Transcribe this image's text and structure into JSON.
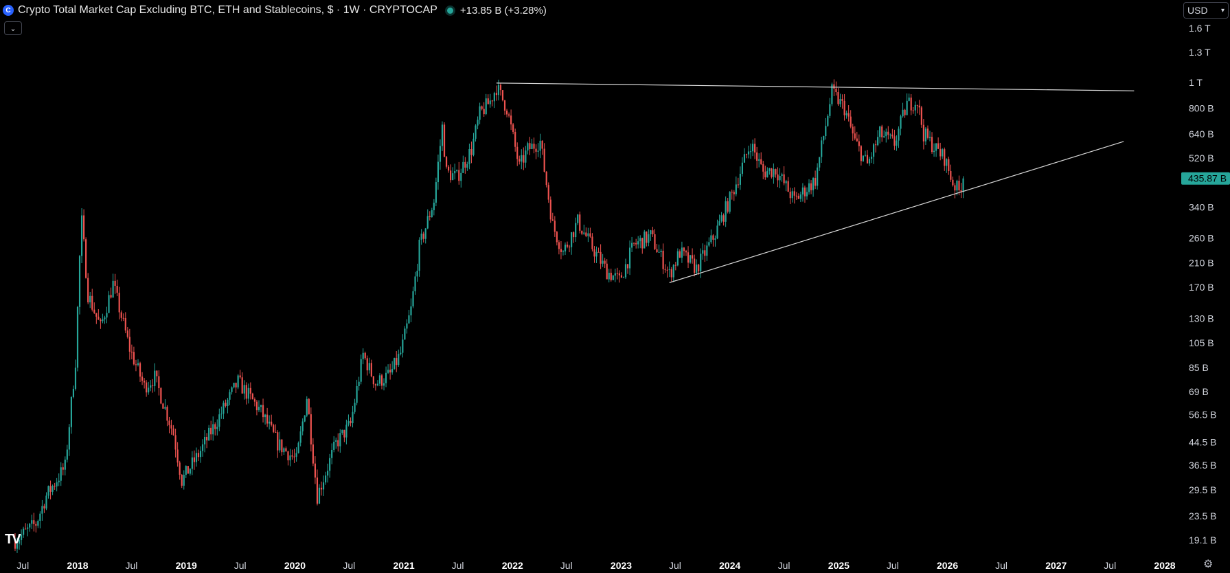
{
  "header": {
    "title": "Crypto Total Market Cap Excluding BTC, ETH and Stablecoins, $ · 1W · CRYPTOCAP",
    "change": "+13.85 B (+3.28%)",
    "logo_icon": "cryptocap-logo-icon",
    "status_color": "#26a69a"
  },
  "toolbar": {
    "currency_label": "USD",
    "collapse_icon": "chevron-down-icon",
    "settings_icon": "gear-icon",
    "tv_logo": "TV"
  },
  "colors": {
    "up": "#26a69a",
    "down": "#ef5350",
    "trendline": "#d9d9d9",
    "last_price_bg": "#26a69a"
  },
  "chart_data": {
    "type": "candlestick",
    "title": "Crypto Total Market Cap Excluding BTC, ETH and Stablecoins",
    "interval": "1W",
    "scale": "log",
    "y_unit": "USD",
    "y_ticks": [
      "1.6 T",
      "1.3 T",
      "1 T",
      "800 B",
      "640 B",
      "520 B",
      "340 B",
      "260 B",
      "210 B",
      "170 B",
      "130 B",
      "105 B",
      "85 B",
      "69 B",
      "56.5 B",
      "44.5 B",
      "36.5 B",
      "29.5 B",
      "23.5 B",
      "19.1 B"
    ],
    "y_tick_values_billions": [
      1600,
      1300,
      1000,
      800,
      640,
      520,
      340,
      260,
      210,
      170,
      130,
      105,
      85,
      69,
      56.5,
      44.5,
      36.5,
      29.5,
      23.5,
      19.1
    ],
    "x_ticks": [
      {
        "label": "Jul",
        "date": "2017-07-01",
        "bold": false
      },
      {
        "label": "2018",
        "date": "2018-01-01",
        "bold": true
      },
      {
        "label": "Jul",
        "date": "2018-07-01",
        "bold": false
      },
      {
        "label": "2019",
        "date": "2019-01-01",
        "bold": true
      },
      {
        "label": "Jul",
        "date": "2019-07-01",
        "bold": false
      },
      {
        "label": "2020",
        "date": "2020-01-01",
        "bold": true
      },
      {
        "label": "Jul",
        "date": "2020-07-01",
        "bold": false
      },
      {
        "label": "2021",
        "date": "2021-01-01",
        "bold": true
      },
      {
        "label": "Jul",
        "date": "2021-07-01",
        "bold": false
      },
      {
        "label": "2022",
        "date": "2022-01-01",
        "bold": true
      },
      {
        "label": "Jul",
        "date": "2022-07-01",
        "bold": false
      },
      {
        "label": "2023",
        "date": "2023-01-01",
        "bold": true
      },
      {
        "label": "Jul",
        "date": "2023-07-01",
        "bold": false
      },
      {
        "label": "2024",
        "date": "2024-01-01",
        "bold": true
      },
      {
        "label": "Jul",
        "date": "2024-07-01",
        "bold": false
      },
      {
        "label": "2025",
        "date": "2025-01-01",
        "bold": true
      },
      {
        "label": "Jul",
        "date": "2025-07-01",
        "bold": false
      },
      {
        "label": "2026",
        "date": "2026-01-01",
        "bold": true
      },
      {
        "label": "Jul",
        "date": "2026-07-01",
        "bold": false
      },
      {
        "label": "2027",
        "date": "2027-01-01",
        "bold": true
      },
      {
        "label": "Jul",
        "date": "2027-07-01",
        "bold": false
      },
      {
        "label": "2028",
        "date": "2028-01-01",
        "bold": true
      }
    ],
    "last_price_label": "435.87 B",
    "last_price_billions": 435.87,
    "trendlines": [
      {
        "name": "resistance",
        "from": {
          "date": "2021-11-08",
          "value_billions": 995
        },
        "to": {
          "date": "2027-09-20",
          "value_billions": 930
        }
      },
      {
        "name": "support",
        "from": {
          "date": "2023-06-12",
          "value_billions": 177
        },
        "to": {
          "date": "2027-08-16",
          "value_billions": 600
        }
      }
    ],
    "path_key_points": [
      [
        "2017-06-05",
        19
      ],
      [
        "2017-08-14",
        22
      ],
      [
        "2017-09-18",
        28
      ],
      [
        "2017-11-20",
        36
      ],
      [
        "2017-12-25",
        90
      ],
      [
        "2018-01-08",
        220
      ],
      [
        "2018-01-15",
        300
      ],
      [
        "2018-02-05",
        160
      ],
      [
        "2018-03-19",
        120
      ],
      [
        "2018-04-30",
        175
      ],
      [
        "2018-06-25",
        100
      ],
      [
        "2018-08-13",
        72
      ],
      [
        "2018-09-17",
        78
      ],
      [
        "2018-11-19",
        48
      ],
      [
        "2018-12-17",
        32
      ],
      [
        "2019-02-11",
        40
      ],
      [
        "2019-04-08",
        52
      ],
      [
        "2019-06-24",
        75
      ],
      [
        "2019-09-09",
        58
      ],
      [
        "2019-11-04",
        44
      ],
      [
        "2020-01-06",
        38
      ],
      [
        "2020-02-10",
        66
      ],
      [
        "2020-03-16",
        28
      ],
      [
        "2020-05-18",
        44
      ],
      [
        "2020-07-06",
        52
      ],
      [
        "2020-08-17",
        95
      ],
      [
        "2020-09-28",
        74
      ],
      [
        "2020-11-16",
        80
      ],
      [
        "2020-12-21",
        96
      ],
      [
        "2021-01-25",
        140
      ],
      [
        "2021-02-22",
        240
      ],
      [
        "2021-04-12",
        360
      ],
      [
        "2021-05-10",
        680
      ],
      [
        "2021-05-24",
        460
      ],
      [
        "2021-06-28",
        440
      ],
      [
        "2021-08-16",
        560
      ],
      [
        "2021-09-13",
        760
      ],
      [
        "2021-10-18",
        850
      ],
      [
        "2021-11-08",
        960
      ],
      [
        "2021-12-13",
        800
      ],
      [
        "2022-01-24",
        480
      ],
      [
        "2022-02-21",
        560
      ],
      [
        "2022-04-04",
        600
      ],
      [
        "2022-05-16",
        290
      ],
      [
        "2022-06-20",
        230
      ],
      [
        "2022-08-08",
        300
      ],
      [
        "2022-09-26",
        240
      ],
      [
        "2022-11-14",
        195
      ],
      [
        "2022-12-26",
        180
      ],
      [
        "2023-02-13",
        245
      ],
      [
        "2023-04-10",
        265
      ],
      [
        "2023-06-12",
        190
      ],
      [
        "2023-07-17",
        230
      ],
      [
        "2023-09-11",
        200
      ],
      [
        "2023-11-13",
        270
      ],
      [
        "2024-01-08",
        380
      ],
      [
        "2024-03-11",
        590
      ],
      [
        "2024-04-22",
        460
      ],
      [
        "2024-06-03",
        470
      ],
      [
        "2024-08-05",
        360
      ],
      [
        "2024-10-14",
        430
      ],
      [
        "2024-12-09",
        920
      ],
      [
        "2025-01-20",
        800
      ],
      [
        "2025-02-24",
        600
      ],
      [
        "2025-04-07",
        490
      ],
      [
        "2025-05-19",
        640
      ],
      [
        "2025-07-07",
        590
      ],
      [
        "2025-08-18",
        830
      ],
      [
        "2025-09-22",
        850
      ],
      [
        "2025-10-13",
        640
      ],
      [
        "2025-11-24",
        560
      ],
      [
        "2025-12-22",
        520
      ],
      [
        "2026-01-19",
        420
      ],
      [
        "2026-02-09",
        390
      ],
      [
        "2026-02-23",
        435.87
      ]
    ]
  }
}
